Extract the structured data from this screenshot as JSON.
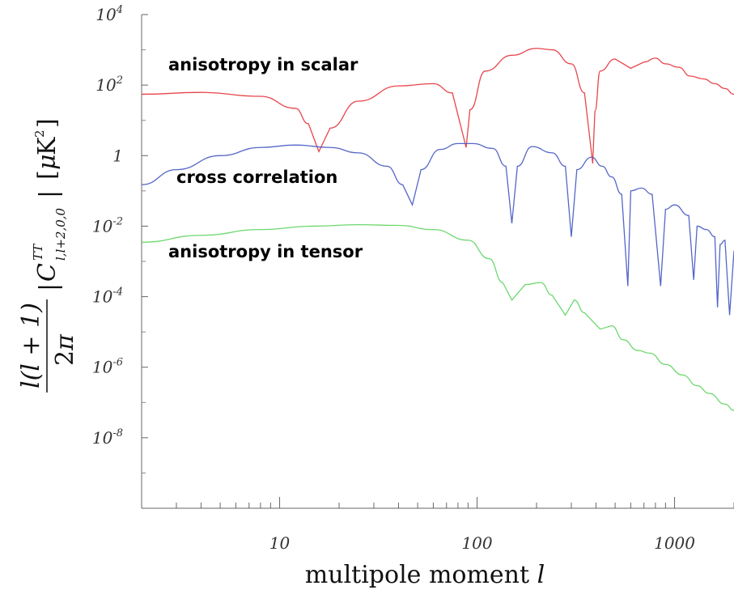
{
  "chart_data": {
    "type": "line",
    "x_scale": "log",
    "y_scale": "log",
    "xlim": [
      2,
      2000
    ],
    "ylim": [
      1e-10,
      10000.0
    ],
    "xticks": [
      {
        "value": 10,
        "label": "10"
      },
      {
        "value": 100,
        "label": "100"
      },
      {
        "value": 1000,
        "label": "1000"
      }
    ],
    "yticks": [
      {
        "value": 10000.0,
        "base": "10",
        "exp": "4"
      },
      {
        "value": 100.0,
        "base": "10",
        "exp": "2"
      },
      {
        "value": 1,
        "base": "1",
        "exp": ""
      },
      {
        "value": 0.01,
        "base": "10",
        "exp": "-2"
      },
      {
        "value": 0.0001,
        "base": "10",
        "exp": "-4"
      },
      {
        "value": 1e-06,
        "base": "10",
        "exp": "-6"
      },
      {
        "value": 1e-08,
        "base": "10",
        "exp": "-8"
      }
    ],
    "xlabel": "multipole moment l",
    "ylabel": "l(l+1)/2π |C^{TT}_{l,l+2,0,0}| [μK²]",
    "grid": false,
    "series": [
      {
        "name": "anisotropy in scalar",
        "color": "#e8454b",
        "x": [
          2,
          4,
          8,
          12,
          14,
          15.8,
          18,
          25,
          40,
          60,
          75,
          88,
          92,
          110,
          150,
          200,
          240,
          300,
          350,
          385,
          395,
          420,
          500,
          600,
          700,
          800,
          900,
          1050,
          1200,
          1400,
          1600,
          1800,
          2000
        ],
        "y": [
          55,
          62,
          48,
          22,
          8,
          1.3,
          6,
          35,
          95,
          110,
          60,
          1.7,
          20,
          250,
          700,
          1100,
          1000,
          400,
          60,
          0.6,
          18,
          250,
          550,
          300,
          450,
          580,
          400,
          320,
          180,
          150,
          110,
          80,
          55
        ]
      },
      {
        "name": "cross correlation",
        "color": "#5566c8",
        "x": [
          2,
          3,
          5,
          8,
          12,
          18,
          25,
          35,
          42,
          47,
          52,
          65,
          80,
          95,
          120,
          140,
          150,
          160,
          190,
          240,
          280,
          300,
          320,
          380,
          430,
          480,
          540,
          580,
          600,
          680,
          770,
          850,
          900,
          1000,
          1180,
          1250,
          1300,
          1450,
          1600,
          1650,
          1700,
          1800,
          1900,
          2000
        ],
        "y": [
          0.15,
          0.4,
          1.0,
          1.7,
          2.0,
          1.7,
          1.2,
          0.5,
          0.15,
          0.04,
          0.4,
          1.5,
          2.2,
          2.2,
          1.6,
          0.5,
          0.012,
          0.5,
          1.8,
          1.2,
          0.5,
          0.005,
          0.4,
          0.9,
          0.5,
          0.25,
          0.08,
          0.0002,
          0.1,
          0.12,
          0.08,
          0.0002,
          0.03,
          0.04,
          0.02,
          0.0003,
          0.01,
          0.008,
          0.005,
          5e-05,
          0.003,
          0.004,
          3e-05,
          0.002
        ]
      },
      {
        "name": "anisotropy in tensor",
        "color": "#6dd86d",
        "x": [
          2,
          4,
          8,
          15,
          25,
          40,
          60,
          90,
          115,
          135,
          150,
          175,
          210,
          240,
          280,
          310,
          350,
          420,
          480,
          550,
          650,
          750,
          900,
          1100,
          1300,
          1500,
          1800,
          2000
        ],
        "y": [
          0.0035,
          0.0055,
          0.008,
          0.01,
          0.011,
          0.0105,
          0.008,
          0.004,
          0.0012,
          0.00025,
          8e-05,
          0.00022,
          0.00025,
          0.00011,
          3e-05,
          8e-05,
          3.5e-05,
          1.2e-05,
          1.5e-05,
          6e-06,
          3e-06,
          2.5e-06,
          1.2e-06,
          6e-07,
          3e-07,
          1.8e-07,
          9e-08,
          6e-08
        ]
      }
    ]
  }
}
